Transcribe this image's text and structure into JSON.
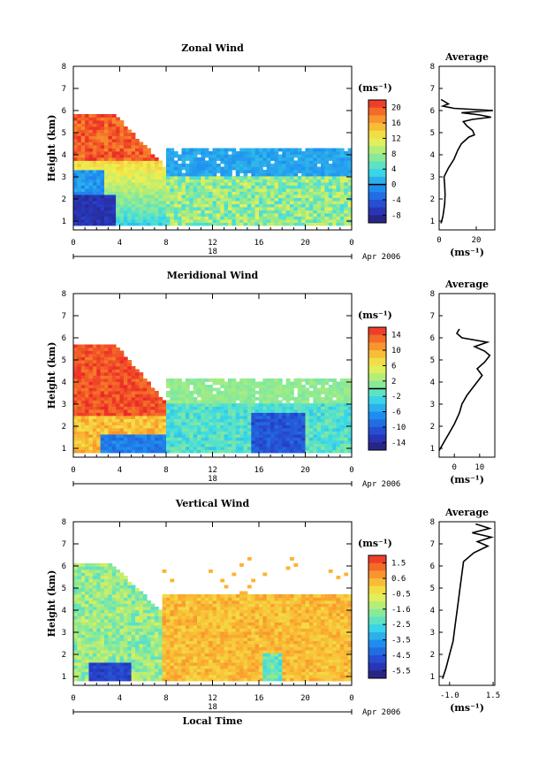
{
  "chart_data": [
    {
      "type": "heatmap",
      "title": "Zonal Wind",
      "ylabel": "Height (km)",
      "xticks": [
        "0",
        "4",
        "8",
        "12",
        "16",
        "20",
        "0"
      ],
      "yticks": [
        "1",
        "2",
        "3",
        "4",
        "5",
        "6",
        "7",
        "8"
      ],
      "ylim": [
        0.6,
        8
      ],
      "date_day": "18",
      "date_label": "Apr 2006",
      "colorbar": {
        "unit": "(ms⁻¹)",
        "ticks": [
          "20",
          "16",
          "12",
          "8",
          "4",
          "0",
          "-4",
          "-8"
        ],
        "range": [
          -10,
          22
        ],
        "zero_line": 0
      },
      "profile": {
        "title": "Average",
        "xlabel": "(ms⁻¹)",
        "xticks": [
          "0",
          "20"
        ],
        "xlim": [
          0,
          30
        ],
        "points": [
          [
            1.0,
            0.9
          ],
          [
            2.0,
            1.2
          ],
          [
            2.5,
            1.5
          ],
          [
            3.0,
            1.8
          ],
          [
            3.2,
            2.2
          ],
          [
            3.0,
            2.6
          ],
          [
            2.6,
            3.0
          ],
          [
            5.0,
            3.4
          ],
          [
            8.0,
            3.8
          ],
          [
            10.0,
            4.2
          ],
          [
            12.0,
            4.5
          ],
          [
            16.0,
            4.8
          ],
          [
            19.0,
            4.9
          ],
          [
            18.0,
            5.1
          ],
          [
            15.0,
            5.3
          ],
          [
            13.0,
            5.5
          ],
          [
            18.0,
            5.6
          ],
          [
            28.0,
            5.7
          ],
          [
            22.0,
            5.8
          ],
          [
            12.0,
            5.9
          ],
          [
            29.0,
            6.0
          ],
          [
            8.0,
            6.1
          ],
          [
            2.0,
            6.2
          ],
          [
            5.0,
            6.3
          ],
          [
            1.0,
            6.5
          ]
        ]
      }
    },
    {
      "type": "heatmap",
      "title": "Meridional Wind",
      "ylabel": "Height (km)",
      "xticks": [
        "0",
        "4",
        "8",
        "12",
        "16",
        "20",
        "0"
      ],
      "yticks": [
        "1",
        "2",
        "3",
        "4",
        "5",
        "6",
        "7",
        "8"
      ],
      "ylim": [
        0.6,
        8
      ],
      "date_day": "18",
      "date_label": "Apr 2006",
      "colorbar": {
        "unit": "(ms⁻¹)",
        "ticks": [
          "14",
          "10",
          "6",
          "2",
          "-2",
          "-6",
          "-10",
          "-14"
        ],
        "range": [
          -16,
          16
        ],
        "zero_line": 0
      },
      "profile": {
        "title": "Average",
        "xlabel": "(ms⁻¹)",
        "xticks": [
          "0",
          "10"
        ],
        "xlim": [
          -6,
          16
        ],
        "points": [
          [
            -6,
            0.9
          ],
          [
            -4,
            1.3
          ],
          [
            -2,
            1.7
          ],
          [
            0,
            2.1
          ],
          [
            2,
            2.6
          ],
          [
            3,
            3.0
          ],
          [
            5,
            3.4
          ],
          [
            7,
            3.7
          ],
          [
            9,
            4.0
          ],
          [
            11,
            4.3
          ],
          [
            9,
            4.6
          ],
          [
            12,
            4.9
          ],
          [
            14,
            5.2
          ],
          [
            12,
            5.4
          ],
          [
            8,
            5.6
          ],
          [
            13,
            5.8
          ],
          [
            3,
            6.0
          ],
          [
            1,
            6.2
          ],
          [
            2,
            6.4
          ]
        ]
      }
    },
    {
      "type": "heatmap",
      "title": "Vertical Wind",
      "ylabel": "Height (km)",
      "xlabel": "Local Time",
      "xticks": [
        "0",
        "4",
        "8",
        "12",
        "16",
        "20",
        "0"
      ],
      "yticks": [
        "1",
        "2",
        "3",
        "4",
        "5",
        "6",
        "7",
        "8"
      ],
      "ylim": [
        0.6,
        8
      ],
      "date_day": "18",
      "date_label": "Apr 2006",
      "colorbar": {
        "unit": "(ms⁻¹)",
        "ticks": [
          "1.5",
          "0.6",
          "-0.5",
          "-1.6",
          "-2.5",
          "-3.5",
          "-4.5",
          "-5.5"
        ],
        "range": [
          -6,
          2
        ],
        "zero_line": null
      },
      "profile": {
        "title": "Average",
        "xlabel": "(ms⁻¹)",
        "xticks": [
          "-1.0",
          "1.5"
        ],
        "xlim": [
          -1.6,
          1.6
        ],
        "points": [
          [
            -1.4,
            0.9
          ],
          [
            -1.2,
            1.4
          ],
          [
            -1.0,
            2.0
          ],
          [
            -0.8,
            2.6
          ],
          [
            -0.7,
            3.2
          ],
          [
            -0.6,
            3.8
          ],
          [
            -0.5,
            4.4
          ],
          [
            -0.4,
            5.0
          ],
          [
            -0.3,
            5.6
          ],
          [
            -0.2,
            6.2
          ],
          [
            0.4,
            6.6
          ],
          [
            1.2,
            6.9
          ],
          [
            0.6,
            7.1
          ],
          [
            1.4,
            7.3
          ],
          [
            0.3,
            7.5
          ],
          [
            1.3,
            7.7
          ],
          [
            0.5,
            7.9
          ]
        ]
      }
    }
  ]
}
